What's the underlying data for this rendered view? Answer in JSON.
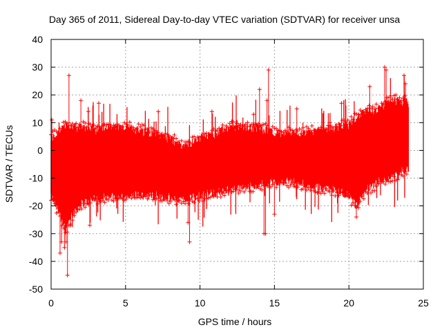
{
  "chart_data": {
    "type": "scatter",
    "title": "Day 365 of 2011, Sidereal Day-to-day VTEC variation (SDTVAR) for receiver unsa",
    "xlabel": "GPS time / hours",
    "ylabel": "SDTVAR / TECUs",
    "xlim": [
      0,
      25
    ],
    "ylim": [
      -50,
      40
    ],
    "xticks": [
      0,
      5,
      10,
      15,
      20,
      25
    ],
    "yticks": [
      -50,
      -40,
      -30,
      -20,
      -10,
      0,
      10,
      20,
      30,
      40
    ],
    "grid": true,
    "marker": "+",
    "color": "#ff0000",
    "series": [
      {
        "name": "SDTVAR",
        "envelope": [
          {
            "x": 0.0,
            "lo": -16,
            "hi": 4
          },
          {
            "x": 0.5,
            "lo": -22,
            "hi": 6
          },
          {
            "x": 1.0,
            "lo": -28,
            "hi": 9
          },
          {
            "x": 1.5,
            "lo": -22,
            "hi": 8
          },
          {
            "x": 2.0,
            "lo": -19,
            "hi": 8
          },
          {
            "x": 3.0,
            "lo": -17,
            "hi": 7
          },
          {
            "x": 4.0,
            "lo": -16,
            "hi": 8
          },
          {
            "x": 5.0,
            "lo": -16,
            "hi": 8
          },
          {
            "x": 6.0,
            "lo": -16,
            "hi": 7
          },
          {
            "x": 7.0,
            "lo": -16,
            "hi": 6
          },
          {
            "x": 8.0,
            "lo": -17,
            "hi": 4
          },
          {
            "x": 9.0,
            "lo": -17,
            "hi": 1
          },
          {
            "x": 10.0,
            "lo": -16,
            "hi": 4
          },
          {
            "x": 11.0,
            "lo": -15,
            "hi": 6
          },
          {
            "x": 12.0,
            "lo": -14,
            "hi": 8
          },
          {
            "x": 13.0,
            "lo": -13,
            "hi": 8
          },
          {
            "x": 14.0,
            "lo": -12,
            "hi": 8
          },
          {
            "x": 15.0,
            "lo": -11,
            "hi": 6
          },
          {
            "x": 16.0,
            "lo": -11,
            "hi": 6
          },
          {
            "x": 17.0,
            "lo": -12,
            "hi": 6
          },
          {
            "x": 18.0,
            "lo": -13,
            "hi": 7
          },
          {
            "x": 19.0,
            "lo": -14,
            "hi": 8
          },
          {
            "x": 20.0,
            "lo": -16,
            "hi": 9
          },
          {
            "x": 20.5,
            "lo": -20,
            "hi": 12
          },
          {
            "x": 21.0,
            "lo": -15,
            "hi": 13
          },
          {
            "x": 22.0,
            "lo": -11,
            "hi": 15
          },
          {
            "x": 23.0,
            "lo": -9,
            "hi": 18
          },
          {
            "x": 24.0,
            "lo": -6,
            "hi": 17
          }
        ],
        "outliers": [
          {
            "x": 0.05,
            "y": 11
          },
          {
            "x": 0.6,
            "y": -37
          },
          {
            "x": 0.7,
            "y": -33
          },
          {
            "x": 0.9,
            "y": -35
          },
          {
            "x": 1.0,
            "y": -33
          },
          {
            "x": 1.1,
            "y": -45
          },
          {
            "x": 1.2,
            "y": 27
          },
          {
            "x": 1.3,
            "y": -27
          },
          {
            "x": 2.0,
            "y": 18
          },
          {
            "x": 2.5,
            "y": 14
          },
          {
            "x": 2.6,
            "y": -27
          },
          {
            "x": 3.2,
            "y": 17
          },
          {
            "x": 7.2,
            "y": 14
          },
          {
            "x": 9.3,
            "y": -33
          },
          {
            "x": 9.2,
            "y": -26
          },
          {
            "x": 10.8,
            "y": 14
          },
          {
            "x": 13.6,
            "y": 13
          },
          {
            "x": 14.3,
            "y": -30
          },
          {
            "x": 14.4,
            "y": -30
          },
          {
            "x": 14.5,
            "y": 18
          },
          {
            "x": 14.6,
            "y": 29
          },
          {
            "x": 15.0,
            "y": -23
          },
          {
            "x": 14.0,
            "y": 22
          },
          {
            "x": 16.5,
            "y": 15
          },
          {
            "x": 19.5,
            "y": 17
          },
          {
            "x": 20.5,
            "y": -24
          },
          {
            "x": 21.4,
            "y": 23
          },
          {
            "x": 22.4,
            "y": 30
          },
          {
            "x": 22.5,
            "y": 29
          },
          {
            "x": 23.7,
            "y": 27
          },
          {
            "x": 23.8,
            "y": 24
          }
        ]
      }
    ]
  }
}
